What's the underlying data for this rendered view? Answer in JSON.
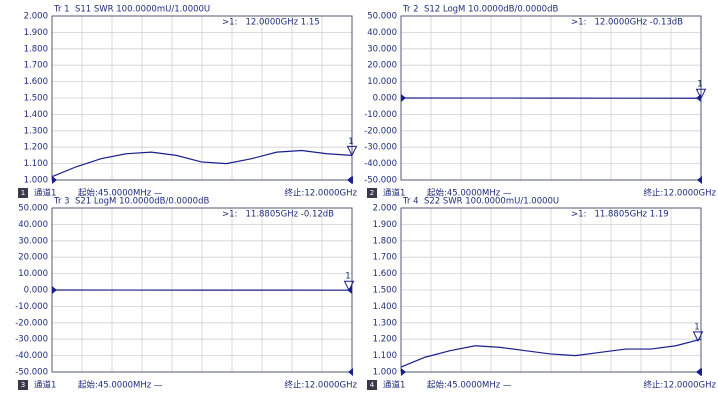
{
  "chart_data": [
    {
      "type": "line",
      "title": "Tr 1  S11 SWR 100.0000mU/1.0000U",
      "readout": ">1:   12.0000GHz 1.15",
      "x": [
        0.045,
        1,
        2,
        3,
        4,
        5,
        6,
        7,
        8,
        9,
        10,
        11,
        12
      ],
      "values": [
        1.02,
        1.08,
        1.13,
        1.16,
        1.17,
        1.15,
        1.11,
        1.1,
        1.13,
        1.17,
        1.18,
        1.16,
        1.15
      ],
      "color": "#1a1f8c",
      "xlim": [
        0.045,
        12
      ],
      "ylim": [
        1,
        2
      ],
      "yticks": [
        {
          "value": 2,
          "label": "2.000"
        },
        {
          "value": 1.9,
          "label": "1.900"
        },
        {
          "value": 1.8,
          "label": "1.800"
        },
        {
          "value": 1.7,
          "label": "1.700"
        },
        {
          "value": 1.6,
          "label": "1.600"
        },
        {
          "value": 1.5,
          "label": "1.500"
        },
        {
          "value": 1.4,
          "label": "1.400"
        },
        {
          "value": 1.3,
          "label": "1.300"
        },
        {
          "value": 1.2,
          "label": "1.200"
        },
        {
          "value": 1.1,
          "label": "1.100"
        },
        {
          "value": 1,
          "label": "1.000"
        }
      ],
      "grid": true,
      "reference": 1,
      "marker": {
        "x": 12,
        "y": 1.15,
        "label": "1"
      },
      "channel_badge": "1",
      "channel": "通道1",
      "start": "起始:45.0000MHz —",
      "stop": "终止:12.0000GHz"
    },
    {
      "type": "line",
      "title": "Tr 2  S12 LogM 10.0000dB/0.0000dB",
      "readout": ">1:   12.0000GHz -0.13dB",
      "x": [
        0.045,
        3,
        6,
        9,
        12
      ],
      "values": [
        0,
        -0.03,
        -0.06,
        -0.1,
        -0.13
      ],
      "color": "#1a1f8c",
      "xlim": [
        0.045,
        12
      ],
      "ylim": [
        -50,
        50
      ],
      "yticks": [
        {
          "value": 50,
          "label": "50.000"
        },
        {
          "value": 40,
          "label": "40.000"
        },
        {
          "value": 30,
          "label": "30.000"
        },
        {
          "value": 20,
          "label": "20.000"
        },
        {
          "value": 10,
          "label": "10.000"
        },
        {
          "value": 0,
          "label": "0.000"
        },
        {
          "value": -10,
          "label": "-10.000"
        },
        {
          "value": -20,
          "label": "-20.000"
        },
        {
          "value": -30,
          "label": "-30.000"
        },
        {
          "value": -40,
          "label": "-40.000"
        },
        {
          "value": -50,
          "label": "-50.000"
        }
      ],
      "grid": true,
      "reference": 0,
      "marker": {
        "x": 12,
        "y": -0.13,
        "label": "1"
      },
      "channel_badge": "2",
      "channel": "通道1",
      "start": "起始:45.0000MHz —",
      "stop": "终止:12.0000GHz"
    },
    {
      "type": "line",
      "title": "Tr 3  S21 LogM 10.0000dB/0.0000dB",
      "readout": ">1:   11.8805GHz -0.12dB",
      "x": [
        0.045,
        3,
        6,
        9,
        12
      ],
      "values": [
        0,
        -0.03,
        -0.06,
        -0.09,
        -0.12
      ],
      "color": "#1a1f8c",
      "xlim": [
        0.045,
        12
      ],
      "ylim": [
        -50,
        50
      ],
      "yticks": [
        {
          "value": 50,
          "label": "50.000"
        },
        {
          "value": 40,
          "label": "40.000"
        },
        {
          "value": 30,
          "label": "30.000"
        },
        {
          "value": 20,
          "label": "20.000"
        },
        {
          "value": 10,
          "label": "10.000"
        },
        {
          "value": 0,
          "label": "0.000"
        },
        {
          "value": -10,
          "label": "-10.000"
        },
        {
          "value": -20,
          "label": "-20.000"
        },
        {
          "value": -30,
          "label": "-30.000"
        },
        {
          "value": -40,
          "label": "-40.000"
        },
        {
          "value": -50,
          "label": "-50.000"
        }
      ],
      "grid": true,
      "reference": 0,
      "marker": {
        "x": 11.8805,
        "y": -0.12,
        "label": "1"
      },
      "channel_badge": "3",
      "channel": "通道1",
      "start": "起始:45.0000MHz —",
      "stop": "终止:12.0000GHz"
    },
    {
      "type": "line",
      "title": "Tr 4  S22 SWR 100.0000mU/1.0000U",
      "readout": ">1:   11.8805GHz 1.19",
      "x": [
        0.045,
        1,
        2,
        3,
        4,
        5,
        6,
        7,
        8,
        9,
        10,
        11,
        12
      ],
      "values": [
        1.03,
        1.09,
        1.13,
        1.16,
        1.15,
        1.13,
        1.11,
        1.1,
        1.12,
        1.14,
        1.14,
        1.16,
        1.2
      ],
      "color": "#1a1f8c",
      "xlim": [
        0.045,
        12
      ],
      "ylim": [
        1,
        2
      ],
      "yticks": [
        {
          "value": 2,
          "label": "2.000"
        },
        {
          "value": 1.9,
          "label": "1.900"
        },
        {
          "value": 1.8,
          "label": "1.800"
        },
        {
          "value": 1.7,
          "label": "1.700"
        },
        {
          "value": 1.6,
          "label": "1.600"
        },
        {
          "value": 1.5,
          "label": "1.500"
        },
        {
          "value": 1.4,
          "label": "1.400"
        },
        {
          "value": 1.3,
          "label": "1.300"
        },
        {
          "value": 1.2,
          "label": "1.200"
        },
        {
          "value": 1.1,
          "label": "1.100"
        },
        {
          "value": 1,
          "label": "1.000"
        }
      ],
      "grid": true,
      "reference": 1,
      "marker": {
        "x": 11.8805,
        "y": 1.19,
        "label": "1"
      },
      "channel_badge": "4",
      "channel": "通道1",
      "start": "起始:45.0000MHz —",
      "stop": "终止:12.0000GHz"
    }
  ]
}
